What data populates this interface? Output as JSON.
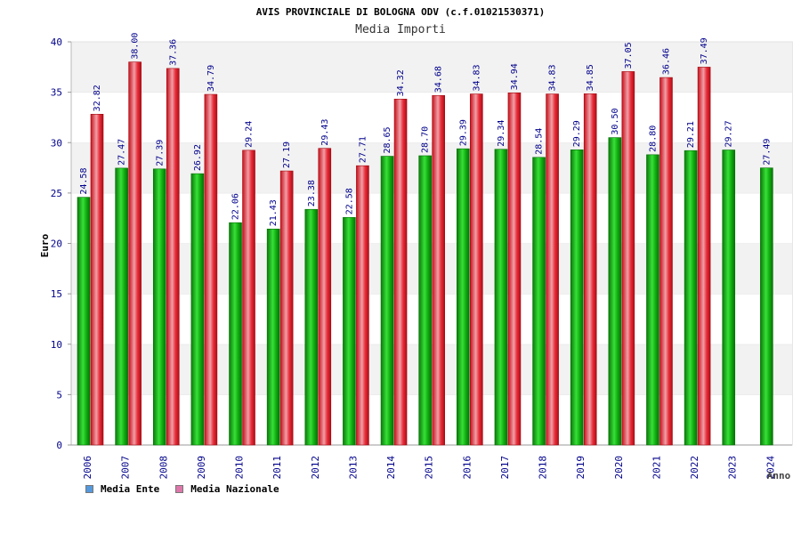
{
  "chart_data": {
    "type": "bar",
    "title": "AVIS PROVINCIALE DI BOLOGNA ODV (c.f.01021530371)",
    "subtitle": "Media Importi",
    "xlabel": "Anno",
    "ylabel": "Euro",
    "ylim": [
      0,
      40
    ],
    "yticks": [
      "0",
      "5",
      "10",
      "15",
      "20",
      "25",
      "30",
      "35",
      "40"
    ],
    "categories": [
      "2006",
      "2007",
      "2008",
      "2009",
      "2010",
      "2011",
      "2012",
      "2013",
      "2014",
      "2015",
      "2016",
      "2017",
      "2018",
      "2019",
      "2020",
      "2021",
      "2022",
      "2023",
      "2024"
    ],
    "series": [
      {
        "name": "Media Ente",
        "color": "#00a000",
        "values": [
          24.58,
          27.47,
          27.39,
          26.92,
          22.06,
          21.43,
          23.38,
          22.58,
          28.65,
          28.7,
          29.39,
          29.34,
          28.54,
          29.29,
          30.5,
          28.8,
          29.21,
          29.27,
          27.49
        ],
        "labels": [
          "24.58",
          "27.47",
          "27.39",
          "26.92",
          "22.06",
          "21.43",
          "23.38",
          "22.58",
          "28.65",
          "28.70",
          "29.39",
          "29.34",
          "28.54",
          "29.29",
          "30.50",
          "28.80",
          "29.21",
          "29.27",
          "27.49"
        ]
      },
      {
        "name": "Media Nazionale",
        "color": "#e8141e",
        "values": [
          32.82,
          38.0,
          37.36,
          34.79,
          29.24,
          27.19,
          29.43,
          27.71,
          34.32,
          34.68,
          34.83,
          34.94,
          34.83,
          34.85,
          37.05,
          36.46,
          37.49,
          null,
          null
        ],
        "labels": [
          "32.82",
          "38.00",
          "37.36",
          "34.79",
          "29.24",
          "27.19",
          "29.43",
          "27.71",
          "34.32",
          "34.68",
          "34.83",
          "34.94",
          "34.83",
          "34.85",
          "37.05",
          "36.46",
          "37.49",
          null,
          null
        ]
      }
    ]
  },
  "legend": {
    "items": [
      {
        "label": "Media Ente",
        "color": "#5599dd"
      },
      {
        "label": "Media Nazionale",
        "color": "#dd77aa"
      }
    ]
  }
}
